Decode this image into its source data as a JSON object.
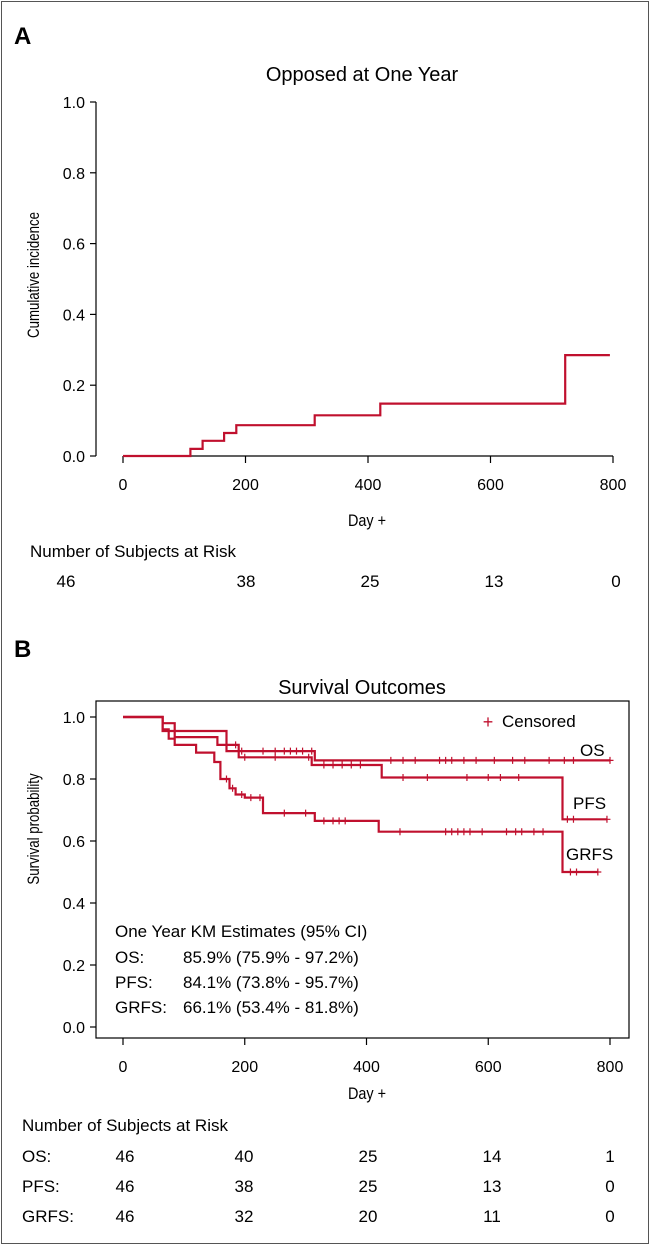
{
  "chart_data": [
    {
      "panel": "A",
      "type": "line",
      "step": true,
      "title": "Opposed at One Year",
      "xlabel": "Day +",
      "ylabel": "Cumulative incidence",
      "xlim": [
        0,
        800
      ],
      "ylim": [
        0,
        1
      ],
      "xticks": [
        0,
        200,
        400,
        600,
        800
      ],
      "yticks": [
        "0.0",
        "0.2",
        "0.4",
        "0.6",
        "0.8",
        "1.0"
      ],
      "color": "#c0102e",
      "series": [
        {
          "x": [
            0,
            110,
            110,
            130,
            130,
            165,
            165,
            185,
            185,
            313,
            313,
            420,
            420,
            722,
            722,
            795
          ],
          "y": [
            0.0,
            0.0,
            0.02,
            0.02,
            0.043,
            0.043,
            0.065,
            0.065,
            0.087,
            0.087,
            0.115,
            0.115,
            0.148,
            0.148,
            0.285,
            0.285
          ]
        }
      ],
      "risk_table": {
        "title": "Number of Subjects at Risk",
        "times": [
          0,
          200,
          400,
          600,
          800
        ],
        "rows": [
          {
            "label": "",
            "values": [
              "46",
              "38",
              "25",
              "13",
              "0"
            ]
          }
        ]
      }
    },
    {
      "panel": "B",
      "type": "line",
      "step": true,
      "title": "Survival Outcomes",
      "xlabel": "Day +",
      "ylabel": "Survival probability",
      "xlim": [
        0,
        800
      ],
      "ylim": [
        0,
        1
      ],
      "xticks": [
        0,
        200,
        400,
        600,
        800
      ],
      "yticks": [
        "0.0",
        "0.2",
        "0.4",
        "0.6",
        "0.8",
        "1.0"
      ],
      "color": "#c0102e",
      "legend": {
        "symbol": "+",
        "label": "Censored",
        "position": "top-right"
      },
      "series": [
        {
          "name": "OS",
          "x": [
            0,
            65,
            65,
            170,
            170,
            315,
            315,
            800
          ],
          "y": [
            1.0,
            1.0,
            0.955,
            0.955,
            0.89,
            0.89,
            0.86,
            0.86
          ],
          "censored": [
            [
              195,
              0.89
            ],
            [
              230,
              0.89
            ],
            [
              250,
              0.89
            ],
            [
              265,
              0.89
            ],
            [
              275,
              0.89
            ],
            [
              285,
              0.89
            ],
            [
              295,
              0.89
            ],
            [
              310,
              0.89
            ],
            [
              440,
              0.86
            ],
            [
              460,
              0.86
            ],
            [
              480,
              0.86
            ],
            [
              520,
              0.86
            ],
            [
              530,
              0.86
            ],
            [
              540,
              0.86
            ],
            [
              560,
              0.86
            ],
            [
              580,
              0.86
            ],
            [
              610,
              0.86
            ],
            [
              640,
              0.86
            ],
            [
              660,
              0.86
            ],
            [
              700,
              0.86
            ],
            [
              725,
              0.86
            ],
            [
              740,
              0.86
            ],
            [
              800,
              0.86
            ]
          ]
        },
        {
          "name": "PFS",
          "x": [
            0,
            65,
            65,
            85,
            85,
            155,
            155,
            190,
            190,
            310,
            310,
            425,
            425,
            722,
            722,
            795
          ],
          "y": [
            1.0,
            1.0,
            0.98,
            0.98,
            0.935,
            0.935,
            0.91,
            0.91,
            0.87,
            0.87,
            0.845,
            0.845,
            0.805,
            0.805,
            0.67,
            0.67
          ],
          "censored": [
            [
              170,
              0.91
            ],
            [
              185,
              0.91
            ],
            [
              200,
              0.87
            ],
            [
              250,
              0.87
            ],
            [
              305,
              0.87
            ],
            [
              330,
              0.845
            ],
            [
              345,
              0.845
            ],
            [
              360,
              0.845
            ],
            [
              375,
              0.845
            ],
            [
              390,
              0.845
            ],
            [
              460,
              0.805
            ],
            [
              500,
              0.805
            ],
            [
              565,
              0.805
            ],
            [
              600,
              0.805
            ],
            [
              620,
              0.805
            ],
            [
              650,
              0.805
            ],
            [
              730,
              0.67
            ],
            [
              740,
              0.67
            ],
            [
              795,
              0.67
            ]
          ]
        },
        {
          "name": "GRFS",
          "x": [
            0,
            65,
            65,
            75,
            75,
            85,
            85,
            120,
            120,
            150,
            150,
            160,
            160,
            175,
            175,
            185,
            185,
            200,
            200,
            230,
            230,
            230,
            230,
            315,
            315,
            420,
            420,
            722,
            722,
            780
          ],
          "y": [
            1.0,
            1.0,
            0.96,
            0.96,
            0.93,
            0.93,
            0.91,
            0.91,
            0.885,
            0.885,
            0.855,
            0.855,
            0.8,
            0.8,
            0.77,
            0.77,
            0.75,
            0.75,
            0.74,
            0.74,
            0.715,
            0.715,
            0.69,
            0.69,
            0.665,
            0.665,
            0.63,
            0.63,
            0.5,
            0.5
          ],
          "censored": [
            [
              170,
              0.8
            ],
            [
              180,
              0.77
            ],
            [
              195,
              0.75
            ],
            [
              210,
              0.74
            ],
            [
              225,
              0.74
            ],
            [
              265,
              0.69
            ],
            [
              300,
              0.69
            ],
            [
              330,
              0.665
            ],
            [
              345,
              0.665
            ],
            [
              355,
              0.665
            ],
            [
              365,
              0.665
            ],
            [
              455,
              0.63
            ],
            [
              530,
              0.63
            ],
            [
              540,
              0.63
            ],
            [
              550,
              0.63
            ],
            [
              560,
              0.63
            ],
            [
              570,
              0.63
            ],
            [
              590,
              0.63
            ],
            [
              630,
              0.63
            ],
            [
              645,
              0.63
            ],
            [
              655,
              0.63
            ],
            [
              675,
              0.63
            ],
            [
              690,
              0.63
            ],
            [
              735,
              0.5
            ],
            [
              745,
              0.5
            ],
            [
              780,
              0.5
            ]
          ]
        }
      ],
      "curve_labels": [
        "OS",
        "PFS",
        "GRFS"
      ],
      "annotations": {
        "heading": "One Year KM Estimates (95% CI)",
        "rows": [
          {
            "label": "OS:",
            "value": "85.9% (75.9% - 97.2%)"
          },
          {
            "label": "PFS:",
            "value": "84.1% (73.8% - 95.7%)"
          },
          {
            "label": "GRFS:",
            "value": "66.1% (53.4% - 81.8%)"
          }
        ]
      },
      "risk_table": {
        "title": "Number of Subjects at Risk",
        "times": [
          0,
          200,
          400,
          600,
          800
        ],
        "rows": [
          {
            "label": "OS:",
            "values": [
              "46",
              "40",
              "25",
              "14",
              "1"
            ]
          },
          {
            "label": "PFS:",
            "values": [
              "46",
              "38",
              "25",
              "13",
              "0"
            ]
          },
          {
            "label": "GRFS:",
            "values": [
              "46",
              "32",
              "20",
              "11",
              "0"
            ]
          }
        ]
      }
    }
  ]
}
